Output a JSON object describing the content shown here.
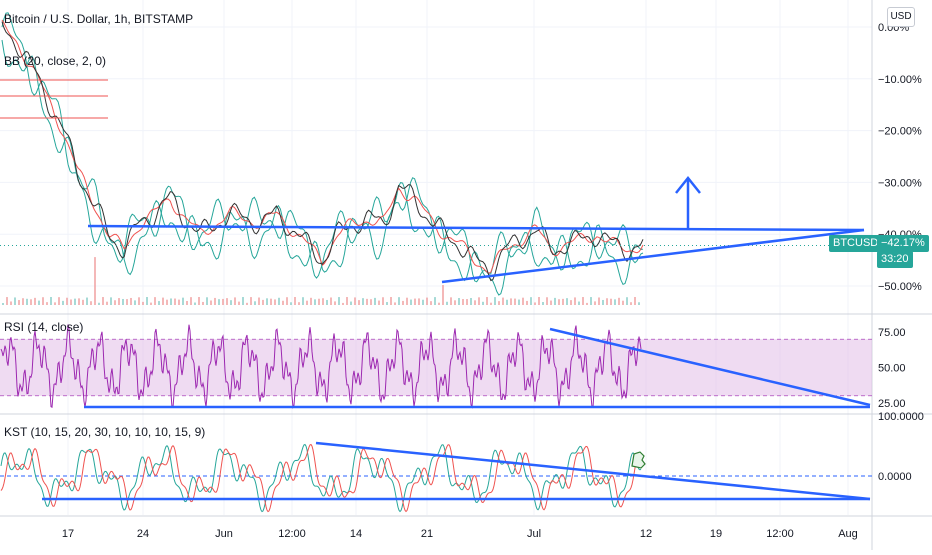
{
  "header": {
    "title": "Bitcoin / U.S. Dollar, 1h, BITSTAMP",
    "bb_label": "BB (20, close, 2, 0)",
    "currency_button": "USD"
  },
  "price_badge": {
    "symbol": "BTCUSD",
    "change": "−42.17%",
    "countdown": "33:20",
    "color": "#26a69a"
  },
  "panes": {
    "rsi_label": "RSI (14, close)",
    "kst_label": "KST (10, 15, 20, 30, 10, 10, 10, 15, 9)"
  },
  "chart_data": [
    {
      "type": "line",
      "pane": "price",
      "yscale": "percent",
      "ylim": [
        -52,
        2
      ],
      "y_tick_labels": [
        "0.00%",
        "−10.00%",
        "−20.00%",
        "−30.00%",
        "−40.00%",
        "−50.00%"
      ],
      "y_ticks": [
        0,
        -10,
        -20,
        -30,
        -40,
        -50
      ],
      "last_value": -42.17,
      "series": [
        {
          "values": [
            0,
            -3,
            -8,
            -14,
            -20,
            -28,
            -34,
            -40,
            -43,
            -38,
            -36,
            -33,
            -37,
            -40,
            -38,
            -36,
            -37,
            -38,
            -36,
            -39,
            -42,
            -45,
            -40,
            -38,
            -37,
            -38,
            -31,
            -33,
            -37,
            -40,
            -42,
            -45,
            -47,
            -43,
            -41,
            -39,
            -43,
            -42,
            -41,
            -40,
            -42,
            -43,
            -42
          ]
        }
      ],
      "trendlines_color": "#2962ff",
      "arrow": "up"
    },
    {
      "type": "line",
      "pane": "rsi",
      "ylim": [
        20,
        85
      ],
      "y_tick_labels": [
        "75.00",
        "50.00",
        "25.00"
      ],
      "y_ticks": [
        75,
        50,
        25
      ],
      "band": [
        30,
        70
      ],
      "band_color": "#e1bee7",
      "line_color": "#9c27b0"
    },
    {
      "type": "line",
      "pane": "kst",
      "y_tick_labels": [
        "100.0000",
        "0.0000"
      ],
      "y_ticks": [
        100,
        0
      ],
      "series_colors": [
        "#26a69a",
        "#ef5350"
      ]
    }
  ],
  "x_axis": {
    "labels": [
      "17",
      "24",
      "Jun",
      "12:00",
      "14",
      "21",
      "Jul",
      "12",
      "19",
      "12:00",
      "Aug"
    ]
  }
}
